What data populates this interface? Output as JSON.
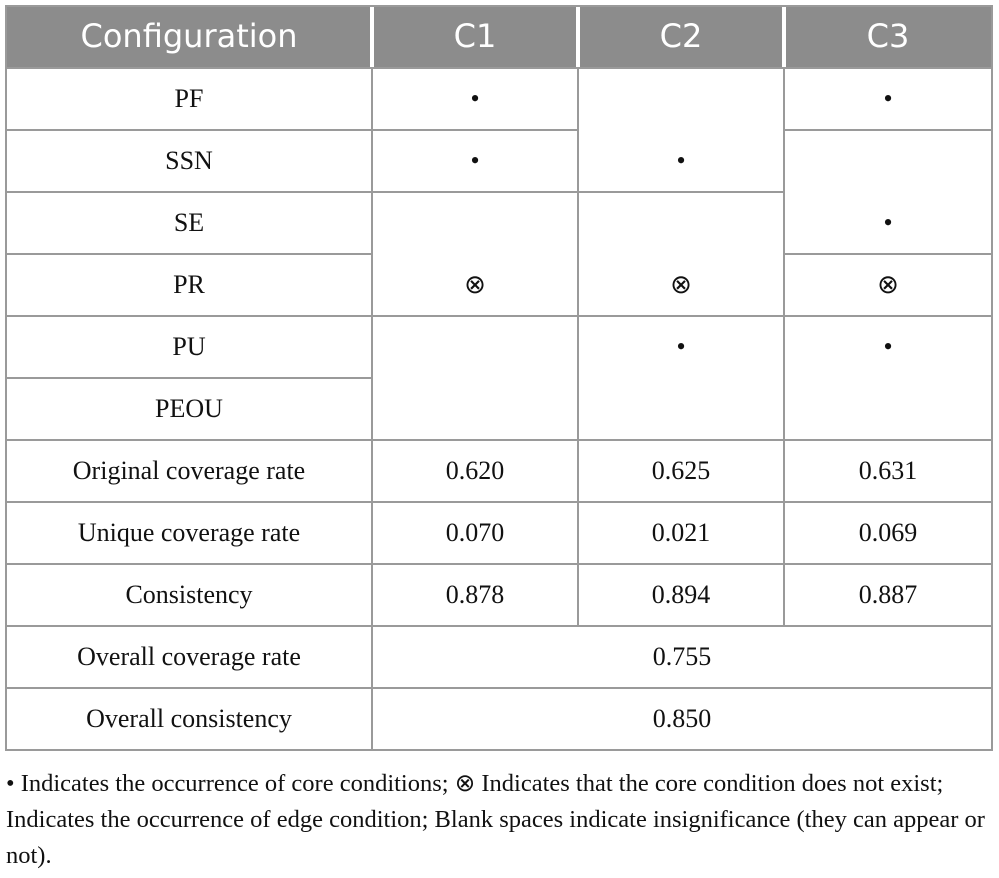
{
  "table": {
    "header": [
      "Configuration",
      "C1",
      "C2",
      "C3"
    ],
    "rows": [
      [
        "PF",
        "•",
        null,
        "•"
      ],
      [
        "SSN",
        "•",
        "•",
        null
      ],
      [
        "SE",
        null,
        null,
        "•"
      ],
      [
        "PR",
        "⊗",
        "⊗",
        "⊗"
      ],
      [
        "PU",
        null,
        "•",
        "•"
      ],
      [
        "PEOU",
        null,
        null,
        null
      ],
      [
        "Original coverage rate",
        "0.620",
        "0.625",
        "0.631"
      ],
      [
        "Unique coverage rate",
        "0.070",
        "0.021",
        "0.069"
      ],
      [
        "Consistency",
        "0.878",
        "0.894",
        "0.887"
      ],
      [
        "Overall coverage rate",
        "0.755"
      ],
      [
        "Overall consistency",
        "0.850"
      ]
    ]
  },
  "footnote": "• Indicates the occurrence of core conditions; ⊗ Indicates that the core condition does not exist; Indicates the occurrence of edge condition; Blank spaces indicate insignificance (they can appear or not)."
}
